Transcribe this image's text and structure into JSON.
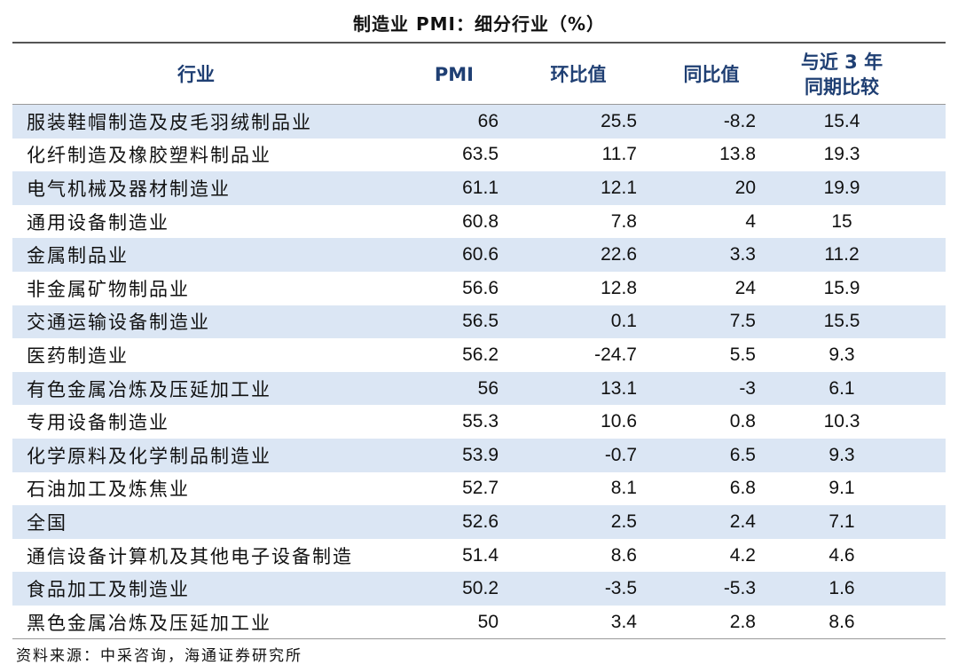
{
  "table": {
    "title": "制造业 PMI：细分行业（%）",
    "headers": {
      "industry": "行业",
      "pmi": "PMI",
      "mom": "环比值",
      "yoy": "同比值",
      "vs3y_line1": "与近 3 年",
      "vs3y_line2": "同期比较"
    },
    "rows": [
      {
        "industry": "服装鞋帽制造及皮毛羽绒制品业",
        "pmi": "66",
        "mom": "25.5",
        "yoy": "-8.2",
        "vs3y": "15.4"
      },
      {
        "industry": "化纤制造及橡胶塑料制品业",
        "pmi": "63.5",
        "mom": "11.7",
        "yoy": "13.8",
        "vs3y": "19.3"
      },
      {
        "industry": "电气机械及器材制造业",
        "pmi": "61.1",
        "mom": "12.1",
        "yoy": "20",
        "vs3y": "19.9"
      },
      {
        "industry": "通用设备制造业",
        "pmi": "60.8",
        "mom": "7.8",
        "yoy": "4",
        "vs3y": "15"
      },
      {
        "industry": "金属制品业",
        "pmi": "60.6",
        "mom": "22.6",
        "yoy": "3.3",
        "vs3y": "11.2"
      },
      {
        "industry": "非金属矿物制品业",
        "pmi": "56.6",
        "mom": "12.8",
        "yoy": "24",
        "vs3y": "15.9"
      },
      {
        "industry": "交通运输设备制造业",
        "pmi": "56.5",
        "mom": "0.1",
        "yoy": "7.5",
        "vs3y": "15.5"
      },
      {
        "industry": "医药制造业",
        "pmi": "56.2",
        "mom": "-24.7",
        "yoy": "5.5",
        "vs3y": "9.3"
      },
      {
        "industry": "有色金属冶炼及压延加工业",
        "pmi": "56",
        "mom": "13.1",
        "yoy": "-3",
        "vs3y": "6.1"
      },
      {
        "industry": "专用设备制造业",
        "pmi": "55.3",
        "mom": "10.6",
        "yoy": "0.8",
        "vs3y": "10.3"
      },
      {
        "industry": "化学原料及化学制品制造业",
        "pmi": "53.9",
        "mom": "-0.7",
        "yoy": "6.5",
        "vs3y": "9.3"
      },
      {
        "industry": "石油加工及炼焦业",
        "pmi": "52.7",
        "mom": "8.1",
        "yoy": "6.8",
        "vs3y": "9.1"
      },
      {
        "industry": "全国",
        "pmi": "52.6",
        "mom": "2.5",
        "yoy": "2.4",
        "vs3y": "7.1"
      },
      {
        "industry": "通信设备计算机及其他电子设备制造",
        "pmi": "51.4",
        "mom": "8.6",
        "yoy": "4.2",
        "vs3y": "4.6"
      },
      {
        "industry": "食品加工及制造业",
        "pmi": "50.2",
        "mom": "-3.5",
        "yoy": "-5.3",
        "vs3y": "1.6"
      },
      {
        "industry": "黑色金属冶炼及压延加工业",
        "pmi": "50",
        "mom": "3.4",
        "yoy": "2.8",
        "vs3y": "8.6"
      }
    ]
  },
  "source": "资料来源：中采咨询，海通证券研究所",
  "colors": {
    "header_text": "#1f3f73",
    "row_shade": "#dbe6f4"
  }
}
